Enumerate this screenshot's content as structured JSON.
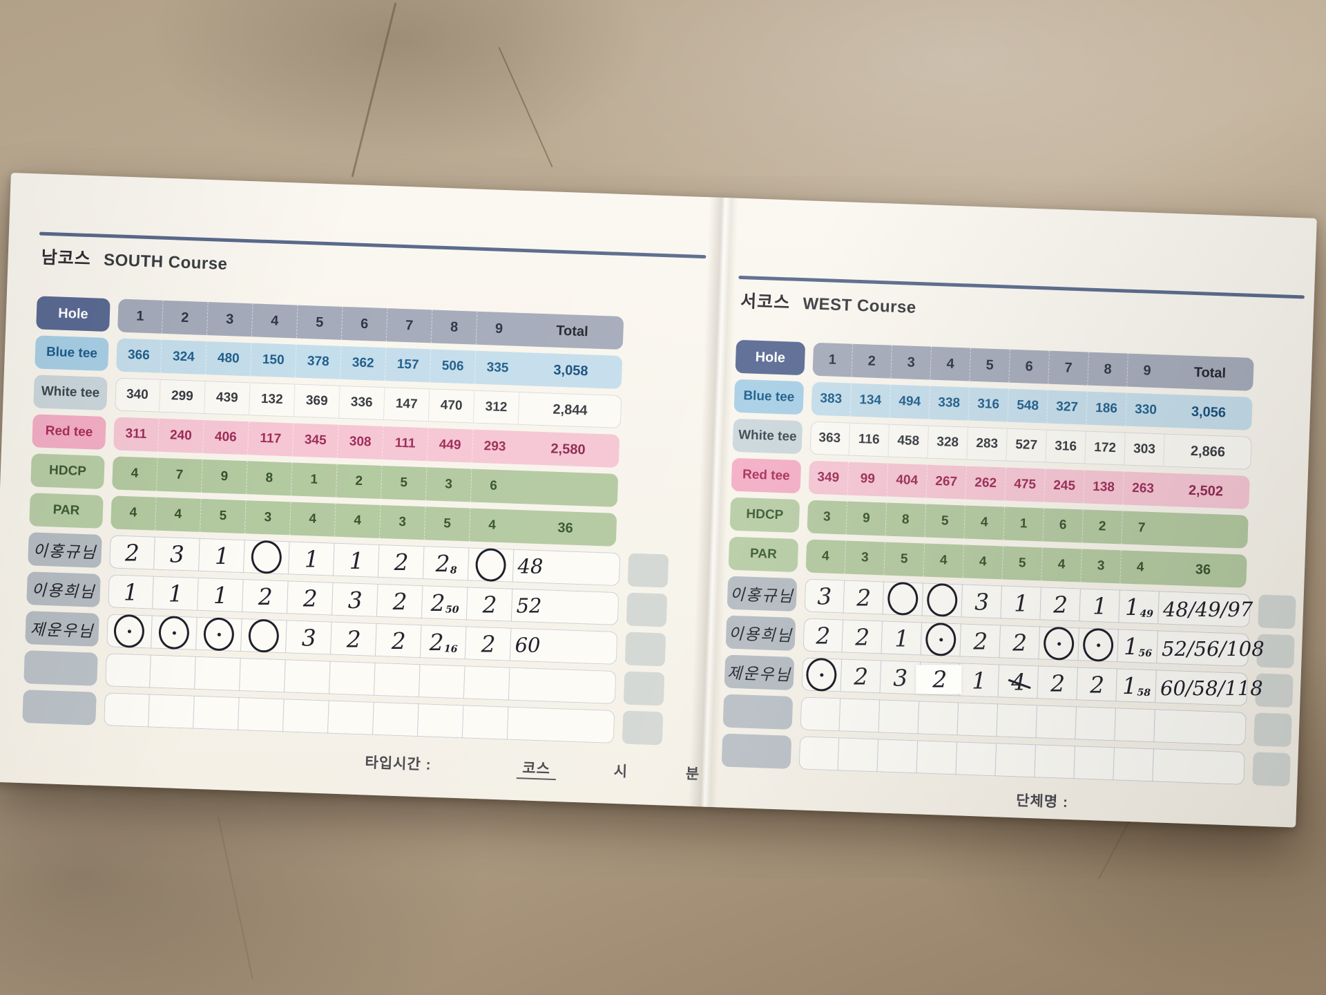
{
  "colors": {
    "header_rule": "#5a698c",
    "hole_header_bg": "#5a6a93",
    "blue_tee_bg": "#c5deeb",
    "white_tee_bg": "#fbfaf4",
    "red_tee_bg": "#f6c6d4",
    "hdcp_par_bg": "#b3c9a0",
    "player_name_bg": "#b5bcc2",
    "paper": "#f7f4ec",
    "ink": "#20202b"
  },
  "pages": [
    {
      "id": "south",
      "badge_ko": "남코스",
      "title": "SOUTH Course",
      "hole": {
        "label": "Hole",
        "numbers": [
          "1",
          "2",
          "3",
          "4",
          "5",
          "6",
          "7",
          "8",
          "9"
        ],
        "total_label": "Total"
      },
      "tee_rows": [
        {
          "key": "blue",
          "label": "Blue tee",
          "values": [
            "366",
            "324",
            "480",
            "150",
            "378",
            "362",
            "157",
            "506",
            "335"
          ],
          "total": "3,058"
        },
        {
          "key": "white",
          "label": "White tee",
          "values": [
            "340",
            "299",
            "439",
            "132",
            "369",
            "336",
            "147",
            "470",
            "312"
          ],
          "total": "2,844"
        },
        {
          "key": "red",
          "label": "Red tee",
          "values": [
            "311",
            "240",
            "406",
            "117",
            "345",
            "308",
            "111",
            "449",
            "293"
          ],
          "total": "2,580"
        },
        {
          "key": "hdcp",
          "label": "HDCP",
          "values": [
            "4",
            "7",
            "9",
            "8",
            "1",
            "2",
            "5",
            "3",
            "6"
          ],
          "total": ""
        },
        {
          "key": "par",
          "label": "PAR",
          "values": [
            "4",
            "4",
            "5",
            "3",
            "4",
            "4",
            "3",
            "5",
            "4"
          ],
          "total": "36"
        }
      ],
      "players": [
        {
          "name": "이홍규님",
          "scores": [
            {
              "mark": "2"
            },
            {
              "mark": "3"
            },
            {
              "mark": "1"
            },
            {
              "mark": "circle"
            },
            {
              "mark": "1"
            },
            {
              "mark": "1"
            },
            {
              "mark": "2"
            },
            {
              "mark": "2",
              "note": "8"
            },
            {
              "mark": "circle"
            }
          ],
          "total": "48"
        },
        {
          "name": "이용희님",
          "scores": [
            {
              "mark": "1"
            },
            {
              "mark": "1"
            },
            {
              "mark": "1"
            },
            {
              "mark": "2"
            },
            {
              "mark": "2"
            },
            {
              "mark": "3"
            },
            {
              "mark": "2"
            },
            {
              "mark": "2",
              "note": "50"
            },
            {
              "mark": "2"
            }
          ],
          "total": "52"
        },
        {
          "name": "제운우님",
          "scores": [
            {
              "mark": "circle-dot"
            },
            {
              "mark": "circle-dot"
            },
            {
              "mark": "circle-dot"
            },
            {
              "mark": "circle"
            },
            {
              "mark": "3"
            },
            {
              "mark": "2"
            },
            {
              "mark": "2"
            },
            {
              "mark": "2",
              "note": "16"
            },
            {
              "mark": "2"
            }
          ],
          "total": "60"
        },
        {
          "name": "",
          "scores": [],
          "total": ""
        },
        {
          "name": "",
          "scores": [],
          "total": ""
        }
      ],
      "footer": {
        "label": "타입시간 :",
        "fields": [
          "코스",
          "시",
          "분"
        ]
      }
    },
    {
      "id": "west",
      "badge_ko": "서코스",
      "title": "WEST Course",
      "hole": {
        "label": "Hole",
        "numbers": [
          "1",
          "2",
          "3",
          "4",
          "5",
          "6",
          "7",
          "8",
          "9"
        ],
        "total_label": "Total"
      },
      "tee_rows": [
        {
          "key": "blue",
          "label": "Blue tee",
          "values": [
            "383",
            "134",
            "494",
            "338",
            "316",
            "548",
            "327",
            "186",
            "330"
          ],
          "total": "3,056"
        },
        {
          "key": "white",
          "label": "White tee",
          "values": [
            "363",
            "116",
            "458",
            "328",
            "283",
            "527",
            "316",
            "172",
            "303"
          ],
          "total": "2,866"
        },
        {
          "key": "red",
          "label": "Red tee",
          "values": [
            "349",
            "99",
            "404",
            "267",
            "262",
            "475",
            "245",
            "138",
            "263"
          ],
          "total": "2,502"
        },
        {
          "key": "hdcp",
          "label": "HDCP",
          "values": [
            "3",
            "9",
            "8",
            "5",
            "4",
            "1",
            "6",
            "2",
            "7"
          ],
          "total": ""
        },
        {
          "key": "par",
          "label": "PAR",
          "values": [
            "4",
            "3",
            "5",
            "4",
            "4",
            "5",
            "4",
            "3",
            "4"
          ],
          "total": "36"
        }
      ],
      "players": [
        {
          "name": "이홍규님",
          "scores": [
            {
              "mark": "3"
            },
            {
              "mark": "2"
            },
            {
              "mark": "circle"
            },
            {
              "mark": "circle"
            },
            {
              "mark": "3"
            },
            {
              "mark": "1"
            },
            {
              "mark": "2"
            },
            {
              "mark": "1"
            },
            {
              "mark": "1",
              "note": "49"
            }
          ],
          "total": "48/49/97"
        },
        {
          "name": "이용희님",
          "scores": [
            {
              "mark": "2"
            },
            {
              "mark": "2"
            },
            {
              "mark": "1"
            },
            {
              "mark": "circle-dot"
            },
            {
              "mark": "2"
            },
            {
              "mark": "2"
            },
            {
              "mark": "circle-dot"
            },
            {
              "mark": "circle-dot"
            },
            {
              "mark": "1",
              "note": "56"
            }
          ],
          "total": "52/56/108"
        },
        {
          "name": "제운우님",
          "scores": [
            {
              "mark": "circle-dot"
            },
            {
              "mark": "2"
            },
            {
              "mark": "3"
            },
            {
              "mark": "2",
              "tape": true
            },
            {
              "mark": "1"
            },
            {
              "mark": "4",
              "struck": true
            },
            {
              "mark": "2"
            },
            {
              "mark": "2"
            },
            {
              "mark": "1",
              "note": "58"
            }
          ],
          "total": "60/58/118"
        },
        {
          "name": "",
          "scores": [],
          "total": ""
        },
        {
          "name": "",
          "scores": [],
          "total": ""
        }
      ],
      "footer": {
        "label": "단체명 :",
        "fields": []
      }
    }
  ]
}
